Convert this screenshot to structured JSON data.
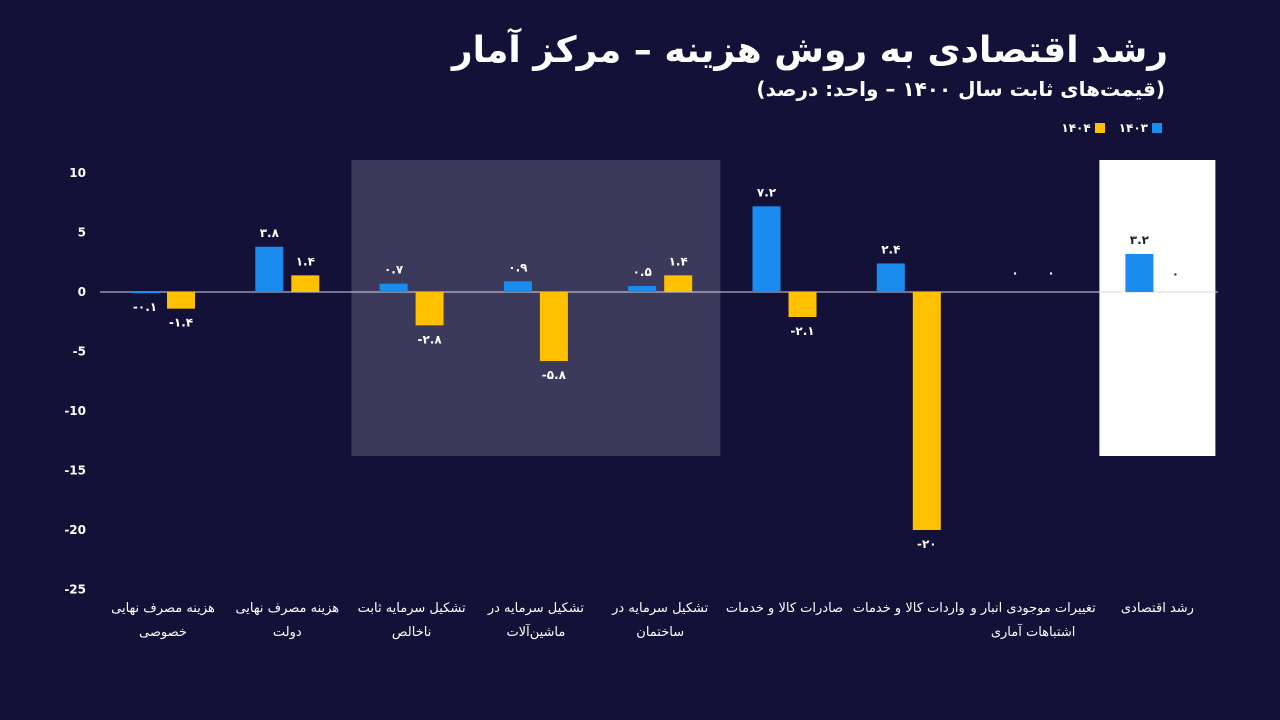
{
  "header": {
    "title": "رشد اقتصادی به روش هزینه – مرکز آمار",
    "subtitle": "(قیمت‌های ثابت سال ۱۴۰۰ – واحد: درصد)"
  },
  "colors": {
    "background": "#131137",
    "series_1403": "#1a8cf0",
    "series_1404": "#ffc000",
    "highlight_dark": "#3c3a5a",
    "highlight_light": "#ffffff",
    "text": "#ffffff"
  },
  "chart_data": {
    "type": "bar",
    "categories": [
      [
        "هزینه مصرف نهایی",
        "خصوصی"
      ],
      [
        "هزینه مصرف نهایی",
        "دولت"
      ],
      [
        "تشکیل سرمایه ثابت",
        "ناخالص"
      ],
      [
        "تشکیل سرمایه در",
        "ماشین‌آلات"
      ],
      [
        "تشکیل سرمایه در",
        "ساختمان"
      ],
      [
        "صادرات کالا و خدمات"
      ],
      [
        "واردات کالا و خدمات"
      ],
      [
        "تغییرات موجودی انبار و",
        "اشتباهات آماری"
      ],
      [
        "رشد اقتصادی"
      ]
    ],
    "series": [
      {
        "name": "۱۴۰۳",
        "values": [
          -0.1,
          3.8,
          0.7,
          0.9,
          0.5,
          7.2,
          2.4,
          0,
          3.2
        ],
        "labels": [
          "-۰.۱",
          "۳.۸",
          "۰.۷",
          "۰.۹",
          "۰.۵",
          "۷.۲",
          "۲.۴",
          "۰",
          "۳.۲"
        ]
      },
      {
        "name": "۱۴۰۴",
        "values": [
          -1.4,
          1.4,
          -2.8,
          -5.8,
          1.4,
          -2.1,
          -20,
          0,
          0
        ],
        "labels": [
          "-۱.۴",
          "۱.۴",
          "-۲.۸",
          "-۵.۸",
          "۱.۴",
          "-۲.۱",
          "-۲۰",
          "۰",
          "۰"
        ]
      }
    ],
    "ylim": [
      -25,
      10
    ],
    "yticks": [
      10,
      5,
      0,
      -5,
      -10,
      -15,
      -20,
      -25
    ],
    "ytick_labels": [
      "10",
      "5",
      "0",
      "-5",
      "-10",
      "-15",
      "-20",
      "-25"
    ],
    "highlight_groups": [
      2,
      3,
      4
    ],
    "highlight_total": 8,
    "legend_position": "top-right"
  }
}
